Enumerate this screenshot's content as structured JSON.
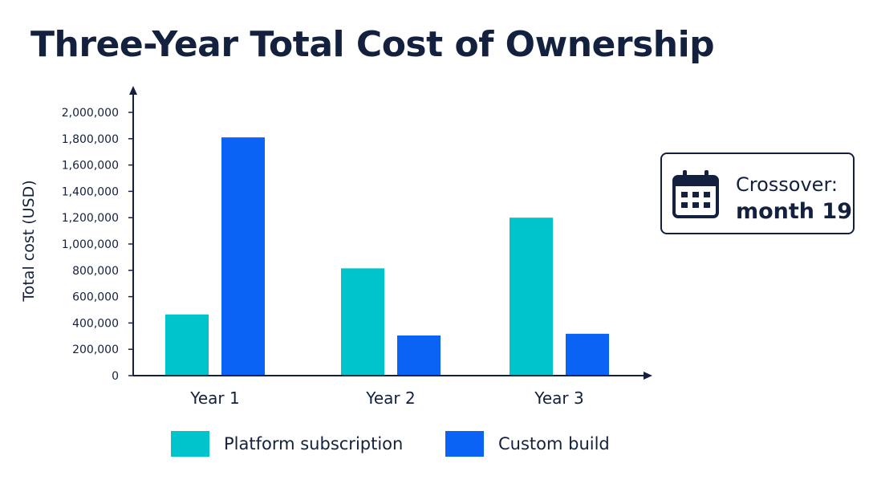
{
  "title": "Three-Year Total Cost of Ownership",
  "callout": {
    "icon": "calendar-icon",
    "line1": "Crossover:",
    "line2": "month 19"
  },
  "colors": {
    "platform": "#00c4cc",
    "custom": "#0b63f6",
    "axis": "#13213f"
  },
  "chart_data": {
    "type": "bar",
    "ylabel": "Total cost (USD)",
    "xlabel": "",
    "ylim": [
      0,
      2000000
    ],
    "yticks": [
      0,
      200000,
      400000,
      600000,
      800000,
      1000000,
      1200000,
      1400000,
      1600000,
      1800000,
      2000000
    ],
    "ytick_labels": [
      "0",
      "200,000",
      "400,000",
      "600,000",
      "800,000",
      "1,000,000",
      "1,200,000",
      "1,400,000",
      "1,600,000",
      "1,800,000",
      "2,000,000"
    ],
    "categories": [
      "Year 1",
      "Year 2",
      "Year 3"
    ],
    "series": [
      {
        "name": "Platform subscription",
        "values": [
          465000,
          815000,
          1200000
        ]
      },
      {
        "name": "Custom build",
        "values": [
          1810000,
          305000,
          318000
        ]
      }
    ],
    "grid": false,
    "legend": "bottom"
  }
}
